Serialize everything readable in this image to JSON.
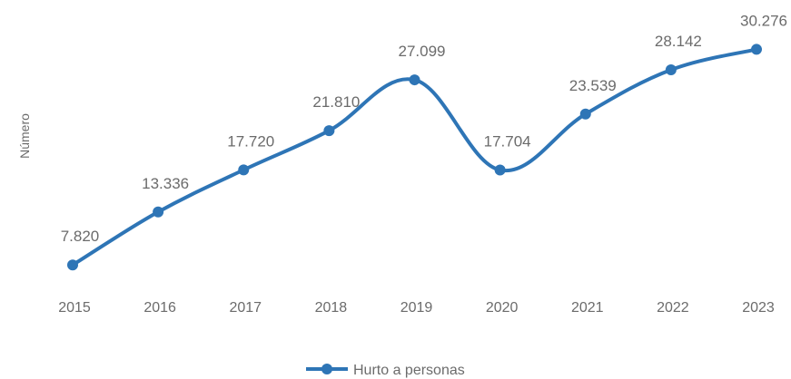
{
  "chart_data": {
    "type": "line",
    "ylabel": "Número",
    "categories": [
      "2015",
      "2016",
      "2017",
      "2018",
      "2019",
      "2020",
      "2021",
      "2022",
      "2023"
    ],
    "series": [
      {
        "name": "Hurto a personas",
        "color": "#2e75b6",
        "values": [
          7820,
          13336,
          17720,
          21810,
          27099,
          17704,
          23539,
          28142,
          30276
        ],
        "labels": [
          "7.820",
          "13.336",
          "17.720",
          "21.810",
          "27.099",
          "17.704",
          "23.539",
          "28.142",
          "30.276"
        ]
      }
    ],
    "ylim": [
      0,
      34000
    ],
    "grid": false,
    "legend_position": "bottom",
    "smoothed": true
  }
}
